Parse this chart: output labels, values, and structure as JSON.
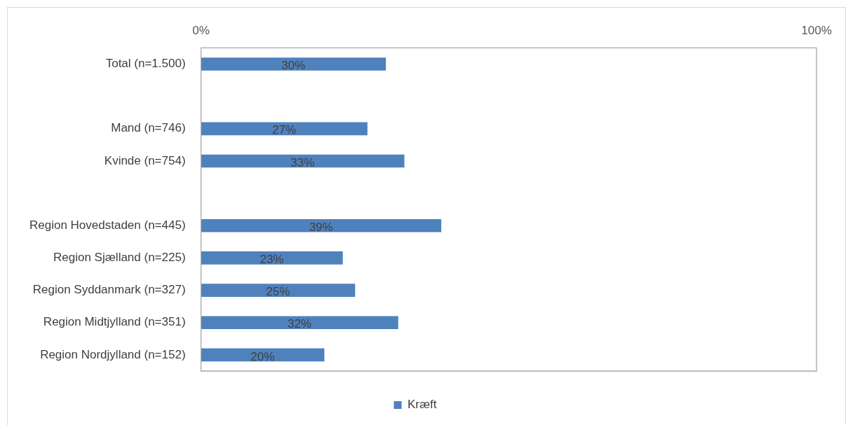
{
  "chart_data": {
    "type": "bar",
    "orientation": "horizontal",
    "categories": [
      "Total (n=1.500)",
      null,
      "Mand (n=746)",
      "Kvinde (n=754)",
      null,
      "Region Hovedstaden (n=445)",
      "Region Sjælland (n=225)",
      "Region Syddanmark (n=327)",
      "Region Midtjylland (n=351)",
      "Region Nordjylland (n=152)"
    ],
    "series": [
      {
        "name": "Kræft",
        "color": "#4f81bd",
        "values": [
          30,
          null,
          27,
          33,
          null,
          39,
          23,
          25,
          32,
          20
        ]
      }
    ],
    "xlim": [
      0,
      100
    ],
    "xticks": [
      {
        "value": 0,
        "label": "0%"
      },
      {
        "value": 100,
        "label": "100%"
      }
    ],
    "value_labels": [
      "30%",
      null,
      "27%",
      "33%",
      null,
      "39%",
      "23%",
      "25%",
      "32%",
      "20%"
    ],
    "grid": false,
    "legend": "bottom"
  }
}
